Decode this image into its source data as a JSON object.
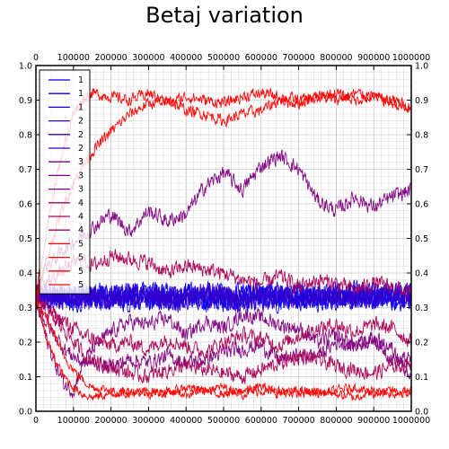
{
  "chart_data": {
    "type": "line",
    "title": "Betaj variation",
    "xlabel": "",
    "ylabel": "",
    "xlim": [
      0,
      1000000
    ],
    "ylim": [
      0,
      1.0
    ],
    "x_ticks": [
      0,
      100000,
      200000,
      300000,
      400000,
      500000,
      600000,
      700000,
      800000,
      900000,
      1000000
    ],
    "x_tick_labels": [
      "0",
      "100000",
      "200000",
      "300000",
      "400000",
      "500000",
      "600000",
      "700000",
      "800000",
      "900000",
      "1000000"
    ],
    "y_ticks": [
      0.0,
      0.1,
      0.2,
      0.3,
      0.4,
      0.5,
      0.6,
      0.7,
      0.8,
      0.9,
      1.0
    ],
    "y_tick_labels": [
      "0.0",
      "0.1",
      "0.2",
      "0.3",
      "0.4",
      "0.5",
      "0.6",
      "0.7",
      "0.8",
      "0.9",
      "1.0"
    ],
    "grid": true,
    "minor_grid": true,
    "legend_position": "top-left",
    "x": [
      0,
      25000,
      50000,
      75000,
      100000,
      125000,
      150000,
      200000,
      250000,
      300000,
      350000,
      400000,
      450000,
      500000,
      550000,
      600000,
      650000,
      700000,
      750000,
      800000,
      850000,
      900000,
      950000,
      1000000
    ],
    "series": [
      {
        "name": "1",
        "color": "#0000ff",
        "noise": 0.03,
        "values": [
          0.33,
          0.34,
          0.32,
          0.33,
          0.34,
          0.33,
          0.33,
          0.34,
          0.33,
          0.32,
          0.34,
          0.33,
          0.33,
          0.34,
          0.32,
          0.33,
          0.34,
          0.33,
          0.33,
          0.32,
          0.34,
          0.33,
          0.33,
          0.34
        ]
      },
      {
        "name": "1",
        "color": "#0000ff",
        "noise": 0.03,
        "values": [
          0.33,
          0.32,
          0.34,
          0.33,
          0.32,
          0.33,
          0.34,
          0.33,
          0.32,
          0.34,
          0.33,
          0.33,
          0.32,
          0.33,
          0.34,
          0.33,
          0.32,
          0.34,
          0.33,
          0.34,
          0.33,
          0.32,
          0.34,
          0.33
        ]
      },
      {
        "name": "1",
        "color": "#0000ff",
        "noise": 0.03,
        "values": [
          0.34,
          0.33,
          0.33,
          0.32,
          0.33,
          0.34,
          0.33,
          0.33,
          0.34,
          0.33,
          0.32,
          0.34,
          0.33,
          0.32,
          0.33,
          0.34,
          0.33,
          0.33,
          0.32,
          0.34,
          0.33,
          0.34,
          0.32,
          0.33
        ]
      },
      {
        "name": "2",
        "color": "#3300cc",
        "noise": 0.03,
        "values": [
          0.33,
          0.33,
          0.34,
          0.33,
          0.33,
          0.32,
          0.33,
          0.34,
          0.33,
          0.33,
          0.32,
          0.33,
          0.34,
          0.33,
          0.33,
          0.34,
          0.33,
          0.32,
          0.33,
          0.33,
          0.34,
          0.33,
          0.33,
          0.32
        ]
      },
      {
        "name": "2",
        "color": "#3300cc",
        "noise": 0.03,
        "values": [
          0.32,
          0.34,
          0.33,
          0.34,
          0.33,
          0.33,
          0.32,
          0.33,
          0.34,
          0.33,
          0.33,
          0.32,
          0.33,
          0.34,
          0.33,
          0.32,
          0.33,
          0.34,
          0.33,
          0.33,
          0.32,
          0.33,
          0.34,
          0.33
        ]
      },
      {
        "name": "2",
        "color": "#3300cc",
        "noise": 0.03,
        "values": [
          0.33,
          0.33,
          0.33,
          0.34,
          0.32,
          0.33,
          0.33,
          0.32,
          0.33,
          0.34,
          0.33,
          0.34,
          0.33,
          0.33,
          0.32,
          0.33,
          0.34,
          0.33,
          0.34,
          0.33,
          0.33,
          0.34,
          0.33,
          0.33
        ]
      },
      {
        "name": "3",
        "color": "#800080",
        "noise": 0.02,
        "values": [
          0.34,
          0.42,
          0.44,
          0.47,
          0.49,
          0.51,
          0.53,
          0.57,
          0.52,
          0.58,
          0.55,
          0.57,
          0.65,
          0.69,
          0.64,
          0.71,
          0.74,
          0.7,
          0.61,
          0.58,
          0.62,
          0.59,
          0.62,
          0.64
        ]
      },
      {
        "name": "3",
        "color": "#800080",
        "noise": 0.02,
        "values": [
          0.33,
          0.26,
          0.22,
          0.18,
          0.16,
          0.14,
          0.14,
          0.13,
          0.15,
          0.14,
          0.16,
          0.14,
          0.15,
          0.17,
          0.18,
          0.19,
          0.15,
          0.16,
          0.16,
          0.2,
          0.19,
          0.21,
          0.15,
          0.15
        ]
      },
      {
        "name": "3",
        "color": "#800080",
        "noise": 0.02,
        "values": [
          0.32,
          0.22,
          0.14,
          0.08,
          0.06,
          0.14,
          0.18,
          0.23,
          0.26,
          0.25,
          0.27,
          0.22,
          0.26,
          0.24,
          0.28,
          0.27,
          0.25,
          0.24,
          0.2,
          0.22,
          0.19,
          0.21,
          0.18,
          0.1
        ]
      },
      {
        "name": "4",
        "color": "#aa0055",
        "noise": 0.02,
        "values": [
          0.33,
          0.3,
          0.28,
          0.26,
          0.24,
          0.22,
          0.21,
          0.19,
          0.2,
          0.18,
          0.21,
          0.19,
          0.17,
          0.2,
          0.22,
          0.21,
          0.19,
          0.22,
          0.24,
          0.25,
          0.23,
          0.25,
          0.24,
          0.2
        ]
      },
      {
        "name": "4",
        "color": "#aa0055",
        "noise": 0.02,
        "values": [
          0.33,
          0.37,
          0.39,
          0.41,
          0.43,
          0.44,
          0.42,
          0.45,
          0.44,
          0.43,
          0.4,
          0.42,
          0.41,
          0.4,
          0.38,
          0.37,
          0.39,
          0.36,
          0.38,
          0.37,
          0.35,
          0.37,
          0.36,
          0.34
        ]
      },
      {
        "name": "4",
        "color": "#aa0055",
        "noise": 0.02,
        "values": [
          0.33,
          0.29,
          0.26,
          0.24,
          0.2,
          0.17,
          0.15,
          0.13,
          0.11,
          0.1,
          0.12,
          0.13,
          0.12,
          0.11,
          0.1,
          0.12,
          0.14,
          0.16,
          0.15,
          0.13,
          0.12,
          0.11,
          0.13,
          0.14
        ]
      },
      {
        "name": "5",
        "color": "#ff0000",
        "noise": 0.015,
        "values": [
          0.33,
          0.5,
          0.65,
          0.77,
          0.86,
          0.9,
          0.92,
          0.91,
          0.9,
          0.92,
          0.89,
          0.91,
          0.9,
          0.89,
          0.91,
          0.92,
          0.91,
          0.9,
          0.91,
          0.92,
          0.9,
          0.91,
          0.9,
          0.88
        ]
      },
      {
        "name": "5",
        "color": "#ff0000",
        "noise": 0.015,
        "values": [
          0.33,
          0.42,
          0.52,
          0.6,
          0.66,
          0.71,
          0.75,
          0.81,
          0.86,
          0.89,
          0.9,
          0.87,
          0.86,
          0.84,
          0.86,
          0.87,
          0.9,
          0.89,
          0.91,
          0.9,
          0.92,
          0.91,
          0.89,
          0.87
        ]
      },
      {
        "name": "5",
        "color": "#ff0000",
        "noise": 0.012,
        "values": [
          0.33,
          0.22,
          0.15,
          0.1,
          0.07,
          0.05,
          0.04,
          0.05,
          0.06,
          0.05,
          0.06,
          0.05,
          0.06,
          0.07,
          0.05,
          0.06,
          0.05,
          0.06,
          0.05,
          0.06,
          0.07,
          0.05,
          0.06,
          0.05
        ]
      },
      {
        "name": "5",
        "color": "#ff0000",
        "noise": 0.012,
        "values": [
          0.33,
          0.27,
          0.22,
          0.16,
          0.12,
          0.09,
          0.07,
          0.06,
          0.05,
          0.06,
          0.05,
          0.07,
          0.06,
          0.05,
          0.06,
          0.07,
          0.06,
          0.05,
          0.06,
          0.05,
          0.04,
          0.06,
          0.05,
          0.06
        ]
      }
    ]
  }
}
